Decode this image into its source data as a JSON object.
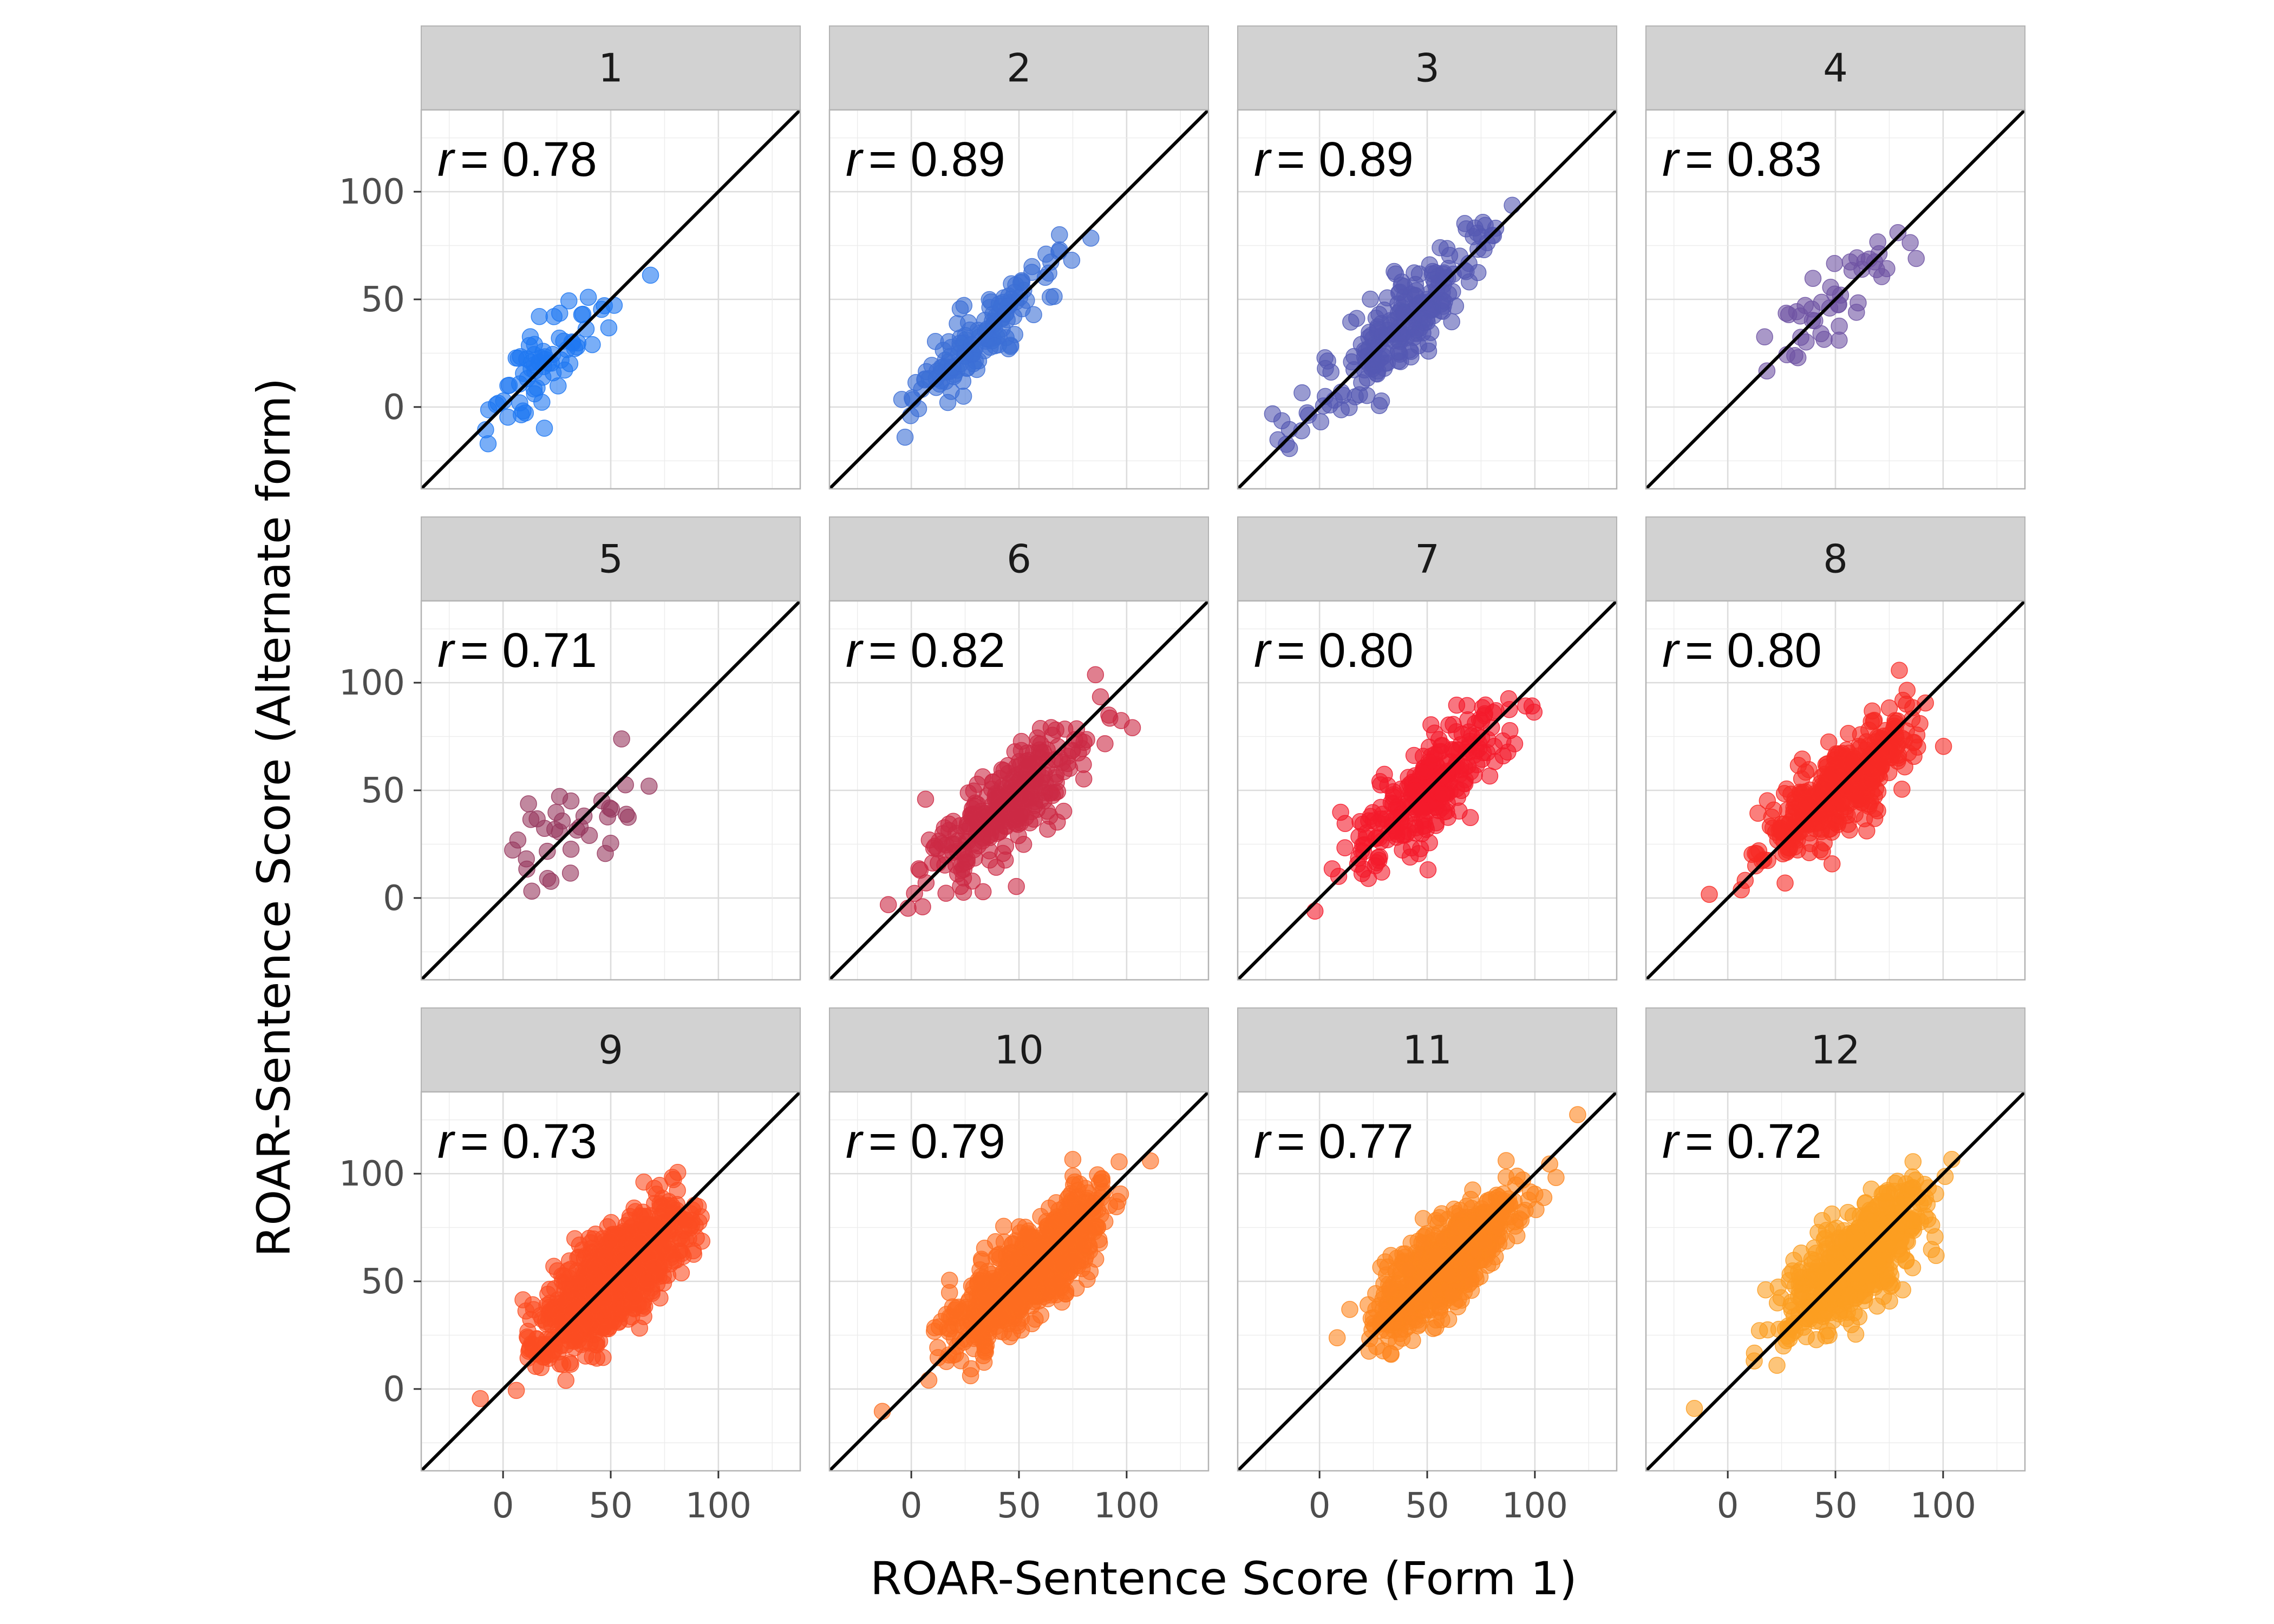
{
  "chart_data": {
    "type": "scatter",
    "layout": "facet-grid-3x4",
    "xlabel": "ROAR-Sentence Score (Form 1)",
    "ylabel": "ROAR-Sentence Score (Alternate form)",
    "xlim": [
      -38,
      138
    ],
    "ylim": [
      -38,
      138
    ],
    "x_ticks": [
      0,
      50,
      100
    ],
    "y_ticks": [
      0,
      50,
      100
    ],
    "grid": true,
    "reference_line": "identity (y = x)",
    "facets": [
      {
        "label": "1",
        "r_prefix": "r",
        "r_value": "= 0.78",
        "color": "#1f78f2",
        "n": 70,
        "mean": 22,
        "sd": 16
      },
      {
        "label": "2",
        "r_prefix": "r",
        "r_value": "= 0.89",
        "color": "#3c6fd6",
        "n": 150,
        "mean": 33,
        "sd": 18
      },
      {
        "label": "3",
        "r_prefix": "r",
        "r_value": "= 0.89",
        "color": "#5559b3",
        "n": 220,
        "mean": 37,
        "sd": 20
      },
      {
        "label": "4",
        "r_prefix": "r",
        "r_value": "= 0.83",
        "color": "#6f54a3",
        "n": 45,
        "mean": 45,
        "sd": 17
      },
      {
        "label": "5",
        "r_prefix": "r",
        "r_value": "= 0.71",
        "color": "#97395f",
        "n": 35,
        "mean": 30,
        "sd": 17
      },
      {
        "label": "6",
        "r_prefix": "r",
        "r_value": "= 0.82",
        "color": "#cc2a45",
        "n": 300,
        "mean": 45,
        "sd": 18
      },
      {
        "label": "7",
        "r_prefix": "r",
        "r_value": "= 0.80",
        "color": "#f41a2c",
        "n": 280,
        "mean": 50,
        "sd": 17
      },
      {
        "label": "8",
        "r_prefix": "r",
        "r_value": "= 0.80",
        "color": "#f72a25",
        "n": 400,
        "mean": 52,
        "sd": 17
      },
      {
        "label": "9",
        "r_prefix": "r",
        "r_value": "= 0.73",
        "color": "#fb4d22",
        "n": 1000,
        "mean": 50,
        "sd": 16
      },
      {
        "label": "10",
        "r_prefix": "r",
        "r_value": "= 0.79",
        "color": "#fd6d20",
        "n": 800,
        "mean": 55,
        "sd": 17
      },
      {
        "label": "11",
        "r_prefix": "r",
        "r_value": "= 0.77",
        "color": "#fd861f",
        "n": 700,
        "mean": 58,
        "sd": 16
      },
      {
        "label": "12",
        "r_prefix": "r",
        "r_value": "= 0.72",
        "color": "#fb9e21",
        "n": 600,
        "mean": 60,
        "sd": 16
      }
    ]
  }
}
